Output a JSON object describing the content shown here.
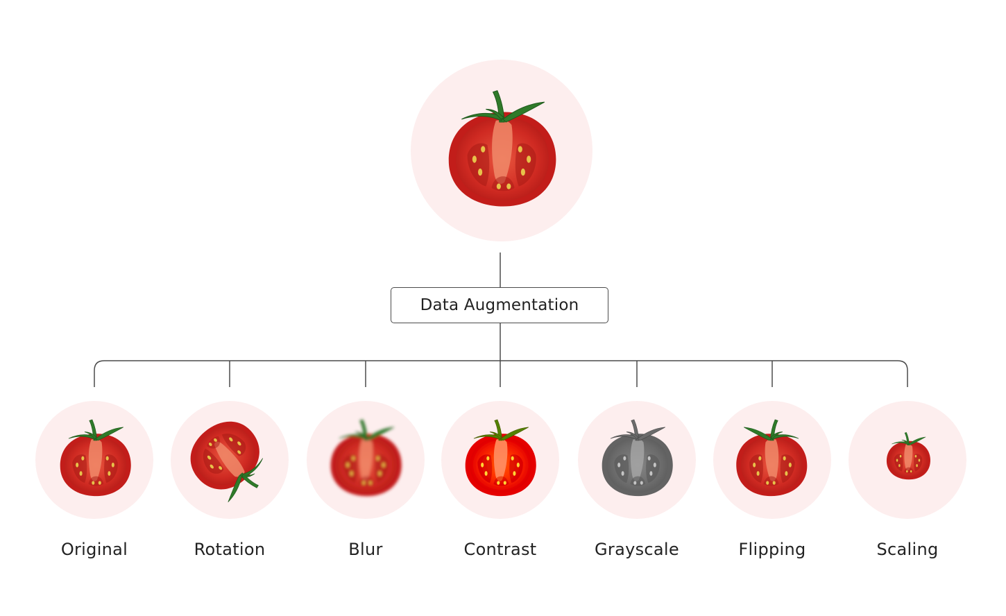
{
  "diagram": {
    "source": {
      "icon": "tomato-half-icon"
    },
    "augmentation_box": {
      "label": "Data Augmentation"
    },
    "variants": [
      {
        "label": "Original",
        "icon": "tomato-half-icon",
        "transform": "none"
      },
      {
        "label": "Rotation",
        "icon": "tomato-half-rotated-icon",
        "transform": "rotate"
      },
      {
        "label": "Blur",
        "icon": "tomato-half-blurred-icon",
        "transform": "blur"
      },
      {
        "label": "Contrast",
        "icon": "tomato-half-contrast-icon",
        "transform": "contrast"
      },
      {
        "label": "Grayscale",
        "icon": "tomato-half-grayscale-icon",
        "transform": "grayscale"
      },
      {
        "label": "Flipping",
        "icon": "tomato-half-flipped-icon",
        "transform": "flip"
      },
      {
        "label": "Scaling",
        "icon": "tomato-half-scaled-icon",
        "transform": "scale"
      }
    ]
  },
  "colors": {
    "circle_background": "#fdeeee",
    "line": "#4a4a4a",
    "tomato_skin": "#c8201c",
    "tomato_flesh": "#d93a2b",
    "stem": "#2f7a2a"
  }
}
